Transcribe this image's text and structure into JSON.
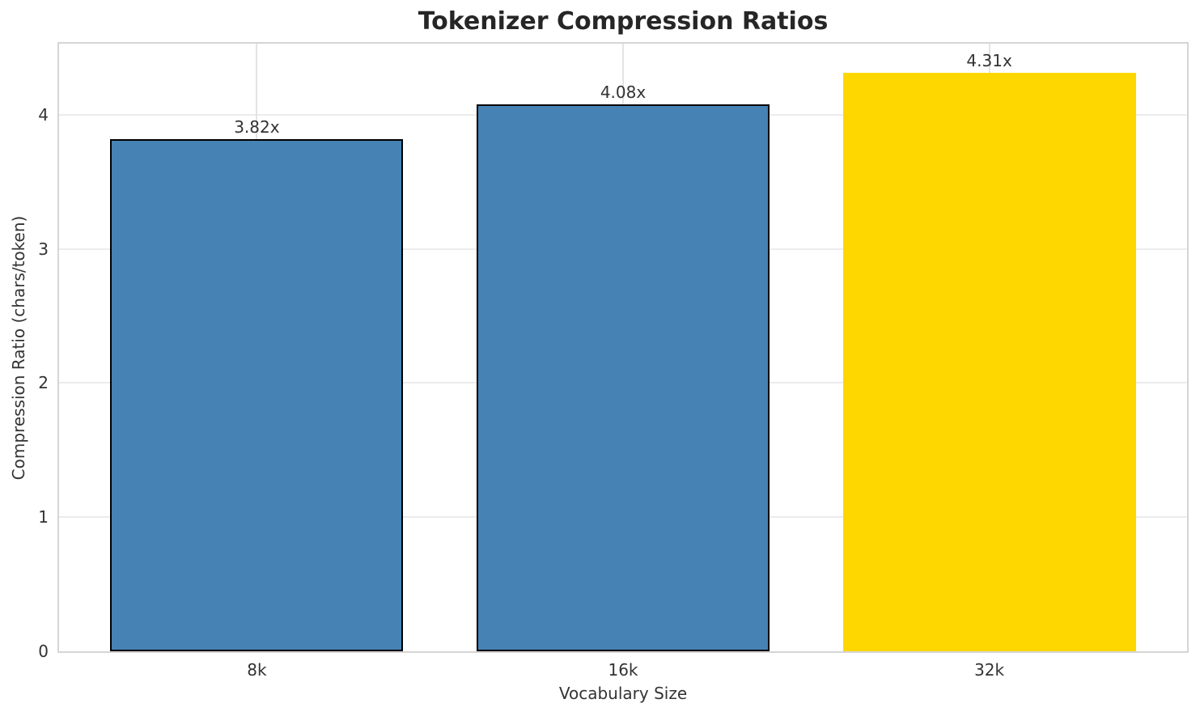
{
  "chart_data": {
    "type": "bar",
    "title": "Tokenizer Compression Ratios",
    "xlabel": "Vocabulary Size",
    "ylabel": "Compression Ratio (chars/token)",
    "categories": [
      "8k",
      "16k",
      "32k"
    ],
    "values": [
      3.82,
      4.08,
      4.31
    ],
    "bar_labels": [
      "3.82x",
      "4.08x",
      "4.31x"
    ],
    "bar_colors": [
      "#4682B4",
      "#4682B4",
      "#FFD700"
    ],
    "bar_edge_colors": [
      "#000000",
      "#000000",
      "none"
    ],
    "yticks": [
      0,
      1,
      2,
      3,
      4
    ],
    "ylim": [
      0,
      4.53
    ],
    "xlim": [
      -0.54,
      2.54
    ],
    "bar_width": 0.8,
    "grid": true,
    "legend": "none",
    "colors": {
      "bar_blue": "#4682B4",
      "bar_gold": "#FFD700",
      "grid_h": "#ececec",
      "grid_v": "#e4e4e4",
      "spine": "#d5d5d5",
      "title_text": "#262626",
      "tick_text": "#333333",
      "background": "#ffffff"
    }
  }
}
